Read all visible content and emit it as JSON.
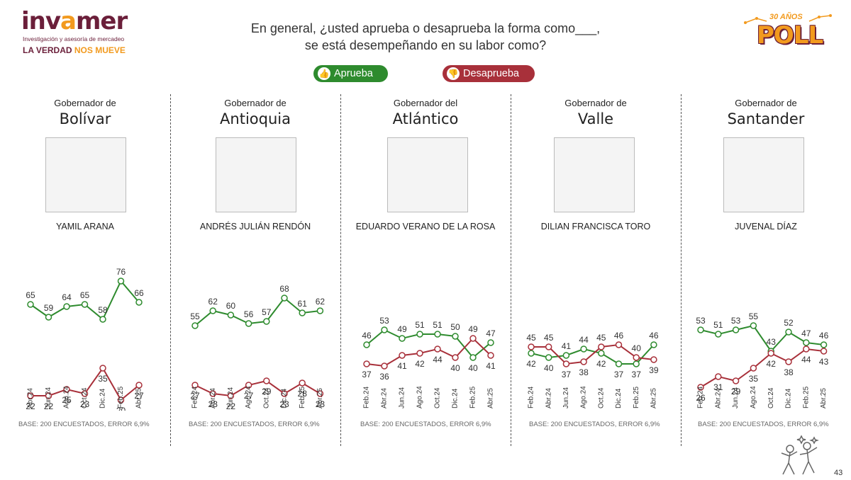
{
  "brand": {
    "name_part1": "inv",
    "name_part2": "a",
    "name_part3": "mer",
    "subtitle": "Investigación y asesoría de mercadeo",
    "tagline_part1": "LA VERDAD ",
    "tagline_part2": "NOS MUEVE"
  },
  "poll_logo": {
    "years": "30 AÑOS",
    "word": "POLL"
  },
  "question": {
    "line1": "En general, ¿usted aprueba o desaprueba la forma como___,",
    "line2": "se está desempeñando en su labor como?"
  },
  "legend": {
    "aprueba": "Aprueba",
    "desaprueba": "Desaprueba",
    "aprueba_color": "#2e8b2e",
    "desaprueba_color": "#a8303a",
    "aprueba_icon": "thumbs-up-icon",
    "desaprueba_icon": "thumbs-down-icon"
  },
  "page_number": "43",
  "chart_data": [
    {
      "type": "line",
      "role": "Gobernador de",
      "department": "Bolívar",
      "person": "YAMIL ARANA",
      "base_note": "BASE: 200 ENCUESTADOS, ERROR 6,9%",
      "categories": [
        "Abr.24",
        "Jun.24",
        "Ago.24",
        "Oct.24",
        "Dic.24",
        "Feb.25",
        "Abr.25"
      ],
      "series": [
        {
          "name": "Aprueba",
          "color": "#2e8b2e",
          "values": [
            65,
            59,
            64,
            65,
            58,
            76,
            66
          ]
        },
        {
          "name": "Desaprueba",
          "color": "#a8303a",
          "values": [
            22,
            22,
            25,
            23,
            35,
            20,
            27
          ]
        }
      ]
    },
    {
      "type": "line",
      "role": "Gobernador de",
      "department": "Antioquia",
      "person": "ANDRÉS JULIÁN RENDÓN",
      "base_note": "BASE: 200 ENCUESTADOS, ERROR 6,9%",
      "categories": [
        "Feb.24",
        "Abr.24",
        "Jun.24",
        "Ago.24",
        "Oct.24",
        "Dic.24",
        "Feb.25",
        "Abr.25"
      ],
      "series": [
        {
          "name": "Aprueba",
          "color": "#2e8b2e",
          "values": [
            55,
            62,
            60,
            56,
            57,
            68,
            61,
            62
          ]
        },
        {
          "name": "Desaprueba",
          "color": "#a8303a",
          "values": [
            27,
            23,
            22,
            27,
            29,
            23,
            28,
            23
          ]
        }
      ]
    },
    {
      "type": "line",
      "role": "Gobernador del",
      "department": "Atlántico",
      "person": "EDUARDO VERANO DE LA ROSA",
      "base_note": "BASE: 200 ENCUESTADOS, ERROR 6,9%",
      "categories": [
        "Feb.24",
        "Abr.24",
        "Jun.24",
        "Ago.24",
        "Oct.24",
        "Dic.24",
        "Feb.25",
        "Abr.25"
      ],
      "series": [
        {
          "name": "Aprueba",
          "color": "#2e8b2e",
          "values": [
            46,
            53,
            49,
            51,
            51,
            50,
            40,
            47
          ]
        },
        {
          "name": "Desaprueba",
          "color": "#a8303a",
          "values": [
            37,
            36,
            41,
            42,
            44,
            40,
            49,
            41
          ]
        }
      ]
    },
    {
      "type": "line",
      "role": "Gobernador de",
      "department": "Valle",
      "person": "DILIAN FRANCISCA TORO",
      "base_note": "BASE: 200 ENCUESTADOS, ERROR 6,9%",
      "categories": [
        "Feb.24",
        "Abr.24",
        "Jun.24",
        "Ago.24",
        "Oct.24",
        "Dic.24",
        "Feb.25",
        "Abr.25"
      ],
      "series": [
        {
          "name": "Aprueba",
          "color": "#2e8b2e",
          "values": [
            42,
            40,
            41,
            44,
            42,
            37,
            37,
            46
          ]
        },
        {
          "name": "Desaprueba",
          "color": "#a8303a",
          "values": [
            45,
            45,
            37,
            38,
            45,
            46,
            40,
            39
          ]
        }
      ]
    },
    {
      "type": "line",
      "role": "Gobernador de",
      "department": "Santander",
      "person": "JUVENAL DÍAZ",
      "base_note": "BASE: 200 ENCUESTADOS, ERROR 6,9%",
      "categories": [
        "Feb.24",
        "Abr.24",
        "Jun.24",
        "Ago.24",
        "Oct.24",
        "Dic.24",
        "Feb.25",
        "Abr.25"
      ],
      "series": [
        {
          "name": "Aprueba",
          "color": "#2e8b2e",
          "values": [
            53,
            51,
            53,
            55,
            43,
            52,
            47,
            46
          ]
        },
        {
          "name": "Desaprueba",
          "color": "#a8303a",
          "values": [
            26,
            31,
            29,
            35,
            42,
            38,
            44,
            43
          ]
        }
      ]
    }
  ]
}
